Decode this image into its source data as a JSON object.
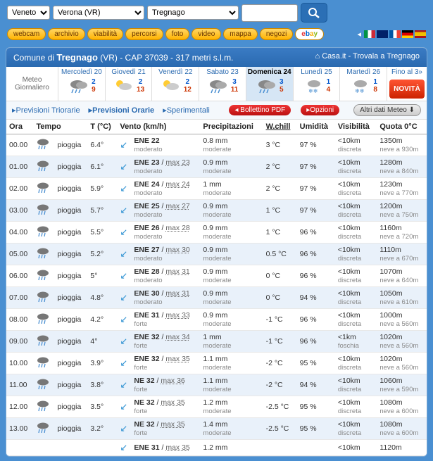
{
  "selectors": {
    "regione_label": "Regione",
    "regione_value": "Veneto",
    "provincia_value": "Verona (VR)",
    "localita_value": "Tregnago"
  },
  "nav": [
    "webcam",
    "archivio",
    "viabilità",
    "percorsi",
    "foto",
    "video",
    "mappa",
    "negozi"
  ],
  "ebay": "ebay",
  "header": {
    "prefix": "Comune di ",
    "name": "Tregnago",
    "suffix": " (VR) - CAP 37039 - 317 metri s.l.m.",
    "home": "Casa.it - Trovala a Tregnago"
  },
  "meteolabel": {
    "l1": "Meteo",
    "l2": "Giornaliero"
  },
  "days": [
    {
      "name": "Mercoledì 20",
      "hi": "2",
      "lo": "9"
    },
    {
      "name": "Giovedì 21",
      "hi": "2",
      "lo": "13"
    },
    {
      "name": "Venerdì 22",
      "hi": "2",
      "lo": "12"
    },
    {
      "name": "Sabato 23",
      "hi": "3",
      "lo": "11"
    },
    {
      "name": "Domenica 24",
      "hi": "3",
      "lo": "5"
    },
    {
      "name": "Lunedì 25",
      "hi": "1",
      "lo": "4"
    },
    {
      "name": "Martedì 26",
      "hi": "1",
      "lo": "8"
    }
  ],
  "fino": "Fino al 3»",
  "novita": "NOVITÀ",
  "tabs": {
    "t1": "▸Previsioni Triorarie",
    "t2": "▸Previsioni Orarie",
    "t3": "▸Sperimentali",
    "bollettino": "◂ Bollettino PDF",
    "opzioni": "▸Opzioni",
    "altri": "Altri dati Meteo ⬇"
  },
  "cols": {
    "ora": "Ora",
    "tempo": "Tempo",
    "t": "T (°C)",
    "vento": "Vento (km/h)",
    "precip": "Precipitazioni",
    "wchill": "W.chill",
    "umid": "Umidità",
    "vis": "Visibilità",
    "quota": "Quota 0°C"
  },
  "rows": [
    {
      "h": "00.00",
      "cond": "pioggia",
      "t": "6.4°",
      "wd": "ENE 22",
      "wmax": "",
      "wi": "moderato",
      "p": "0.8 mm",
      "pi": "moderate",
      "wc": "3 °C",
      "u": "97 %",
      "v": "<10km",
      "vi": "discreta",
      "q": "1350m",
      "qi": "neve a 930m"
    },
    {
      "h": "01.00",
      "cond": "pioggia",
      "t": "6.1°",
      "wd": "ENE 23",
      "wmax": "max 23",
      "wi": "moderato",
      "p": "0.9 mm",
      "pi": "moderate",
      "wc": "2 °C",
      "u": "97 %",
      "v": "<10km",
      "vi": "discreta",
      "q": "1280m",
      "qi": "neve a 840m"
    },
    {
      "h": "02.00",
      "cond": "pioggia",
      "t": "5.9°",
      "wd": "ENE 24",
      "wmax": "max 24",
      "wi": "moderato",
      "p": "1 mm",
      "pi": "moderate",
      "wc": "2 °C",
      "u": "97 %",
      "v": "<10km",
      "vi": "discreta",
      "q": "1230m",
      "qi": "neve a 770m"
    },
    {
      "h": "03.00",
      "cond": "pioggia",
      "t": "5.7°",
      "wd": "ENE 25",
      "wmax": "max 27",
      "wi": "moderato",
      "p": "0.9 mm",
      "pi": "moderate",
      "wc": "1 °C",
      "u": "97 %",
      "v": "<10km",
      "vi": "discreta",
      "q": "1200m",
      "qi": "neve a 750m"
    },
    {
      "h": "04.00",
      "cond": "pioggia",
      "t": "5.5°",
      "wd": "ENE 26",
      "wmax": "max 28",
      "wi": "moderato",
      "p": "0.9 mm",
      "pi": "moderate",
      "wc": "1 °C",
      "u": "96 %",
      "v": "<10km",
      "vi": "discreta",
      "q": "1160m",
      "qi": "neve a 720m"
    },
    {
      "h": "05.00",
      "cond": "pioggia",
      "t": "5.2°",
      "wd": "ENE 27",
      "wmax": "max 30",
      "wi": "moderato",
      "p": "0.9 mm",
      "pi": "moderate",
      "wc": "0.5 °C",
      "u": "96 %",
      "v": "<10km",
      "vi": "discreta",
      "q": "1110m",
      "qi": "neve a 670m"
    },
    {
      "h": "06.00",
      "cond": "pioggia",
      "t": "5°",
      "wd": "ENE 28",
      "wmax": "max 31",
      "wi": "moderato",
      "p": "0.9 mm",
      "pi": "moderate",
      "wc": "0 °C",
      "u": "96 %",
      "v": "<10km",
      "vi": "discreta",
      "q": "1070m",
      "qi": "neve a 640m"
    },
    {
      "h": "07.00",
      "cond": "pioggia",
      "t": "4.8°",
      "wd": "ENE 30",
      "wmax": "max 31",
      "wi": "moderato",
      "p": "0.9 mm",
      "pi": "moderate",
      "wc": "0 °C",
      "u": "94 %",
      "v": "<10km",
      "vi": "discreta",
      "q": "1050m",
      "qi": "neve a 610m"
    },
    {
      "h": "08.00",
      "cond": "pioggia",
      "t": "4.2°",
      "wd": "ENE 31",
      "wmax": "max 33",
      "wi": "forte",
      "p": "0.9 mm",
      "pi": "moderate",
      "wc": "-1 °C",
      "u": "96 %",
      "v": "<10km",
      "vi": "discreta",
      "q": "1000m",
      "qi": "neve a 560m"
    },
    {
      "h": "09.00",
      "cond": "pioggia",
      "t": "4°",
      "wd": "ENE 32",
      "wmax": "max 34",
      "wi": "forte",
      "p": "1 mm",
      "pi": "moderate",
      "wc": "-1 °C",
      "u": "96 %",
      "v": "<1km",
      "vi": "foschia",
      "q": "1020m",
      "qi": "neve a 560m"
    },
    {
      "h": "10.00",
      "cond": "pioggia",
      "t": "3.9°",
      "wd": "ENE 32",
      "wmax": "max 35",
      "wi": "forte",
      "p": "1.1 mm",
      "pi": "moderate",
      "wc": "-2 °C",
      "u": "95 %",
      "v": "<10km",
      "vi": "discreta",
      "q": "1020m",
      "qi": "neve a 560m"
    },
    {
      "h": "11.00",
      "cond": "pioggia",
      "t": "3.8°",
      "wd": "NE 32",
      "wmax": "max 36",
      "wi": "forte",
      "p": "1.1 mm",
      "pi": "moderate",
      "wc": "-2 °C",
      "u": "94 %",
      "v": "<10km",
      "vi": "discreta",
      "q": "1060m",
      "qi": "neve a 590m"
    },
    {
      "h": "12.00",
      "cond": "pioggia",
      "t": "3.5°",
      "wd": "NE 32",
      "wmax": "max 35",
      "wi": "forte",
      "p": "1.2 mm",
      "pi": "moderate",
      "wc": "-2.5 °C",
      "u": "95 %",
      "v": "<10km",
      "vi": "discreta",
      "q": "1080m",
      "qi": "neve a 600m"
    },
    {
      "h": "13.00",
      "cond": "pioggia",
      "t": "3.2°",
      "wd": "NE 32",
      "wmax": "max 35",
      "wi": "forte",
      "p": "1.4 mm",
      "pi": "moderate",
      "wc": "-2.5 °C",
      "u": "95 %",
      "v": "<10km",
      "vi": "discreta",
      "q": "1080m",
      "qi": "neve a 600m"
    },
    {
      "h": "",
      "cond": "",
      "t": "",
      "wd": "ENE 31",
      "wmax": "max 35",
      "wi": "",
      "p": "1.2 mm",
      "pi": "",
      "wc": "",
      "u": "",
      "v": "<10km",
      "vi": "",
      "q": "1120m",
      "qi": ""
    }
  ]
}
